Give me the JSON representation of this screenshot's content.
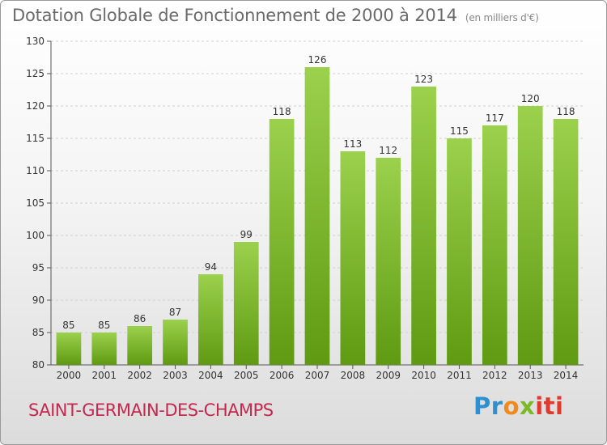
{
  "header": {
    "title": "Dotation Globale de Fonctionnement de 2000 à 2014",
    "unit": "(en milliers d'€)"
  },
  "footer": {
    "place": "SAINT-GERMAIN-DES-CHAMPS",
    "logo": "Proxiti",
    "logo_parts": [
      "Pr",
      "o",
      "x",
      "iti"
    ]
  },
  "colors": {
    "bar_light": "#9bd14d",
    "bar_dark": "#5f9a12",
    "title": "#6a6a6a",
    "place": "#c4284e"
  },
  "chart_data": {
    "type": "bar",
    "title": "Dotation Globale de Fonctionnement de 2000 à 2014",
    "subtitle": "(en milliers d'€)",
    "categories": [
      "2000",
      "2001",
      "2002",
      "2003",
      "2004",
      "2005",
      "2006",
      "2007",
      "2008",
      "2009",
      "2010",
      "2011",
      "2012",
      "2013",
      "2014"
    ],
    "values": [
      85,
      85,
      86,
      87,
      94,
      99,
      118,
      126,
      113,
      112,
      123,
      115,
      117,
      120,
      118
    ],
    "ylim": [
      80,
      130
    ],
    "yticks": [
      80,
      85,
      90,
      95,
      100,
      105,
      110,
      115,
      120,
      125,
      130
    ],
    "grid": true,
    "legend": "none"
  }
}
